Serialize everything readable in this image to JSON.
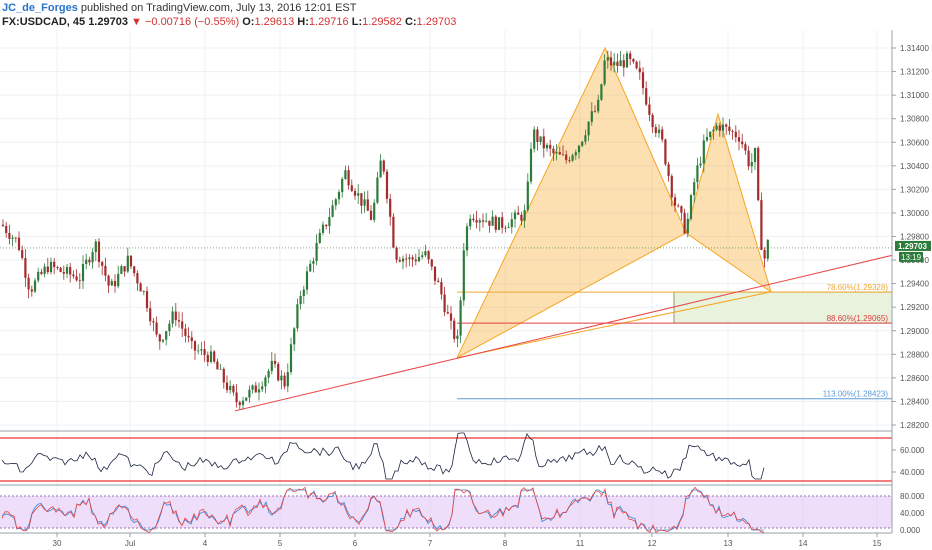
{
  "header": {
    "author": "JC_de_Forges",
    "published": "published on TradingView.com, July 13, 2016 12:01 EST",
    "symbol": "FX:USDCAD, 45",
    "price": "1.29703",
    "change_arrow": "▼",
    "change": "−0.00716 (−0.55%)",
    "o_label": "O:",
    "o": "1.29613",
    "h_label": "H:",
    "h": "1.29716",
    "l_label": "L:",
    "l": "1.29582",
    "c_label": "C:",
    "c": "1.29703"
  },
  "chart_data": {
    "type": "candlestick",
    "x_ticks": [
      "30",
      "Jul",
      "4",
      "5",
      "6",
      "7",
      "8",
      "11",
      "12",
      "13",
      "14",
      "15"
    ],
    "y_ticks": [
      "1.31400",
      "1.31200",
      "1.31000",
      "1.30800",
      "1.30600",
      "1.30400",
      "1.30200",
      "1.30000",
      "1.29800",
      "1.29600",
      "1.29400",
      "1.29200",
      "1.29000",
      "1.28800",
      "1.28600",
      "1.28400",
      "1.28200"
    ],
    "ylim": [
      1.2812,
      1.3152
    ],
    "current_price_label": "1.29703",
    "countdown_label": "13:19",
    "pattern_points": [
      {
        "x": "Jul 7",
        "y": 1.2877
      },
      {
        "x": "Jul 11",
        "y": 1.314
      },
      {
        "x": "Jul 12",
        "y": 1.2983
      },
      {
        "x": "Jul 13",
        "y": 1.3084
      },
      {
        "x": "Jul 13",
        "y": 1.2933
      }
    ],
    "trendline": {
      "from": {
        "x": "Jul 4",
        "y": 1.2832
      },
      "to": {
        "x": "Jul 14",
        "y": 1.2964
      }
    },
    "levels": [
      {
        "label": "78.60%(1.29328)",
        "value": 1.29328,
        "color": "#f0a830"
      },
      {
        "label": "88.60%(1.29065)",
        "value": 1.29065,
        "color": "#e04040"
      },
      {
        "label": "113.00%(1.28423)",
        "value": 1.28423,
        "color": "#5b9bd5"
      }
    ],
    "rsi_panel": {
      "ticks": [
        "60.000",
        "40.000"
      ],
      "upper_band": 70,
      "lower_band": 30
    },
    "stoch_panel": {
      "ticks": [
        "80.000",
        "40.000",
        "0.000"
      ]
    },
    "colors": {
      "up": "#2d7b3a",
      "down": "#a42b2b",
      "pattern": "#f5a623",
      "trend": "#e84545",
      "zone": "#e8f2dd",
      "stoch_bg": "#e5c8f5"
    }
  }
}
